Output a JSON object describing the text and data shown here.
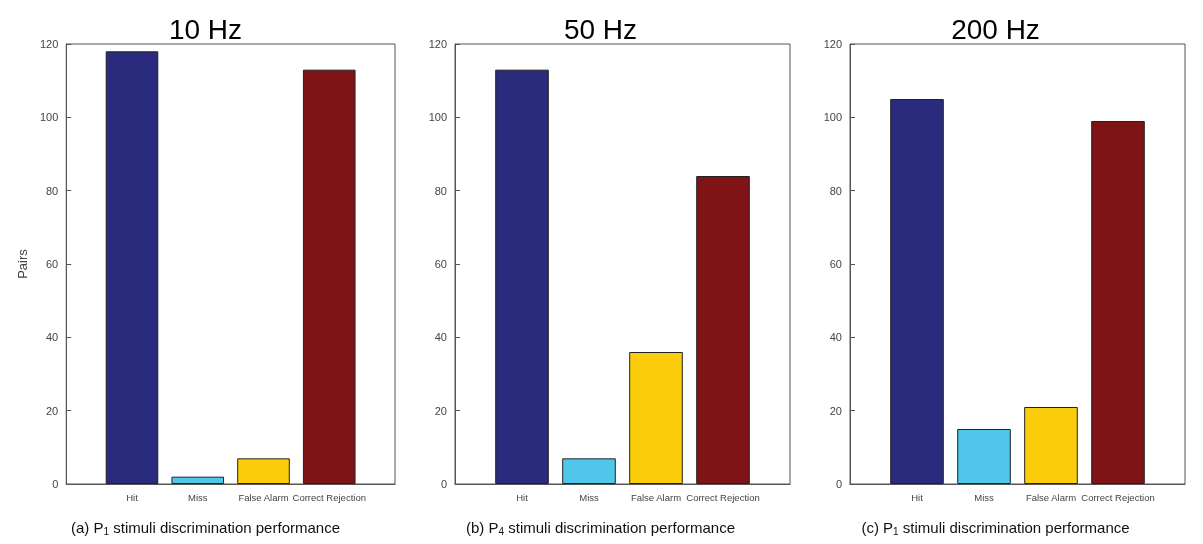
{
  "chart_data": [
    {
      "type": "bar",
      "title": "10 Hz",
      "ylabel": "Pairs",
      "categories": [
        "Hit",
        "Miss",
        "False Alarm",
        "Correct Rejection"
      ],
      "values": [
        118,
        2,
        7,
        113
      ],
      "colors": [
        "#2b2b7d",
        "#4fc6ea",
        "#fbcd0c",
        "#7e1416"
      ],
      "ylim": [
        0,
        120
      ],
      "yticks": [
        0,
        20,
        40,
        60,
        80,
        100,
        120
      ],
      "annotations": [
        "(a) P$_{1}$ stimuli discrimination performance"
      ]
    },
    {
      "type": "bar",
      "title": "50 Hz",
      "categories": [
        "Hit",
        "Miss",
        "False Alarm",
        "Correct Rejection"
      ],
      "values": [
        113,
        7,
        36,
        84
      ],
      "colors": [
        "#2b2b7d",
        "#4fc6ea",
        "#fbcd0c",
        "#7e1416"
      ],
      "ylim": [
        0,
        120
      ],
      "yticks": [
        0,
        20,
        40,
        60,
        80,
        100,
        120
      ],
      "annotations": [
        "(b) P$_{4}$ stimuli discrimination performance"
      ]
    },
    {
      "type": "bar",
      "title": "200 Hz",
      "categories": [
        "Hit",
        "Miss",
        "False Alarm",
        "Correct Rejection"
      ],
      "values": [
        105,
        15,
        21,
        99
      ],
      "colors": [
        "#2b2b7d",
        "#4fc6ea",
        "#fbcd0c",
        "#7e1416"
      ],
      "ylim": [
        0,
        120
      ],
      "yticks": [
        0,
        20,
        40,
        60,
        80,
        100,
        120
      ],
      "annotations": [
        "(c) P$_{1}$ stimuli discrimination performance"
      ]
    }
  ]
}
